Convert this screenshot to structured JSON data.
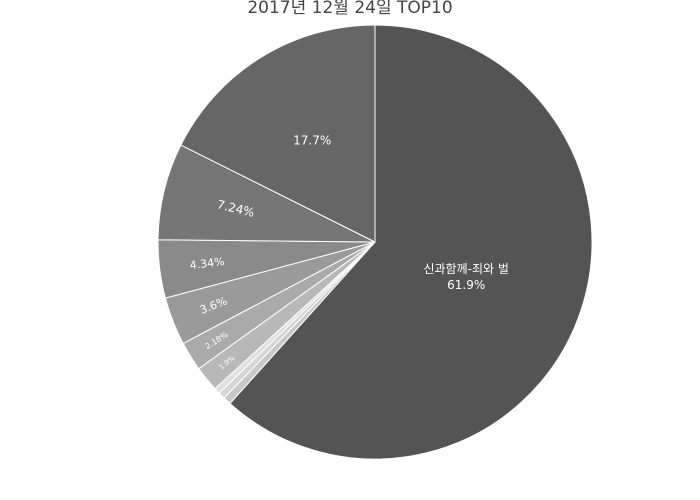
{
  "chart_data": {
    "type": "pie",
    "title": "2017년 12월 24일 TOP10",
    "direction": "clockwise",
    "start": "12 o'clock",
    "slices": [
      {
        "label": "신과함께-죄와 벌",
        "value": 61.9,
        "percent_text": "61.9%",
        "color": "#545454"
      },
      {
        "label": "",
        "value": 0.6,
        "percent_text": "",
        "color": "#c8c8c8"
      },
      {
        "label": "",
        "value": 0.5,
        "percent_text": "",
        "color": "#d4d4d4"
      },
      {
        "label": "",
        "value": 0.45,
        "percent_text": "",
        "color": "#e0e0e0"
      },
      {
        "label": "",
        "value": 1.9,
        "percent_text": "1.9%",
        "color": "#b8b8b8"
      },
      {
        "label": "",
        "value": 2.18,
        "percent_text": "2.18%",
        "color": "#aaaaaa"
      },
      {
        "label": "",
        "value": 3.6,
        "percent_text": "3.6%",
        "color": "#9a9a9a"
      },
      {
        "label": "",
        "value": 4.34,
        "percent_text": "4.34%",
        "color": "#8a8a8a"
      },
      {
        "label": "",
        "value": 7.24,
        "percent_text": "7.24%",
        "color": "#767676"
      },
      {
        "label": "",
        "value": 17.7,
        "percent_text": "17.7%",
        "color": "#666666"
      }
    ]
  }
}
